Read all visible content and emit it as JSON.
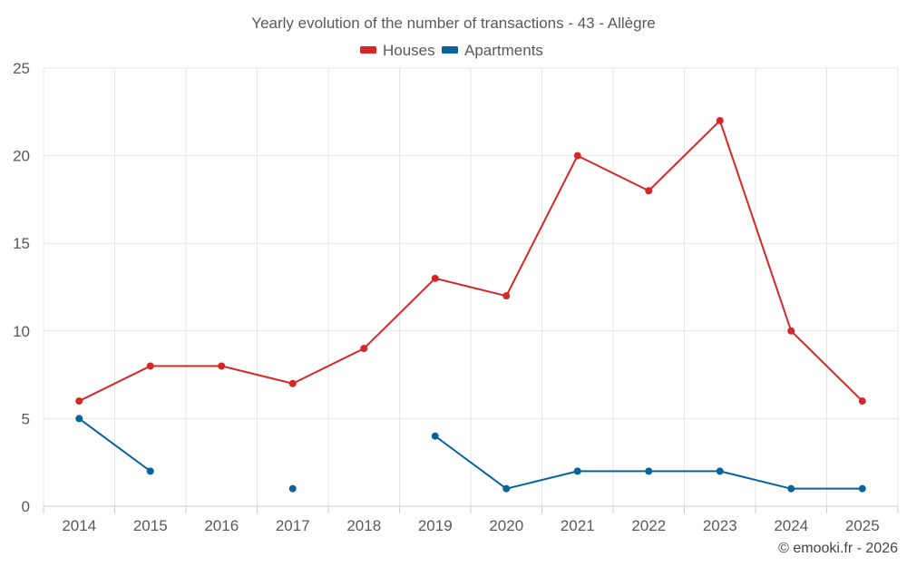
{
  "chart_data": {
    "type": "line",
    "title": "Yearly evolution of the number of transactions - 43 - Allègre",
    "categories": [
      "2014",
      "2015",
      "2016",
      "2017",
      "2018",
      "2019",
      "2020",
      "2021",
      "2022",
      "2023",
      "2024",
      "2025"
    ],
    "series": [
      {
        "name": "Houses",
        "color": "#d62728",
        "values": [
          6,
          8,
          8,
          7,
          9,
          13,
          12,
          20,
          18,
          22,
          10,
          6
        ]
      },
      {
        "name": "Apartments",
        "color": "#08639c",
        "values": [
          5,
          2,
          null,
          1,
          null,
          4,
          1,
          2,
          2,
          2,
          1,
          1
        ]
      }
    ],
    "y_ticks": [
      0,
      5,
      10,
      15,
      20,
      25
    ],
    "ylim": [
      0,
      25
    ],
    "xlabel": "",
    "ylabel": "",
    "grid": true,
    "legend_position": "top-center",
    "credit": "© emooki.fr - 2026"
  }
}
